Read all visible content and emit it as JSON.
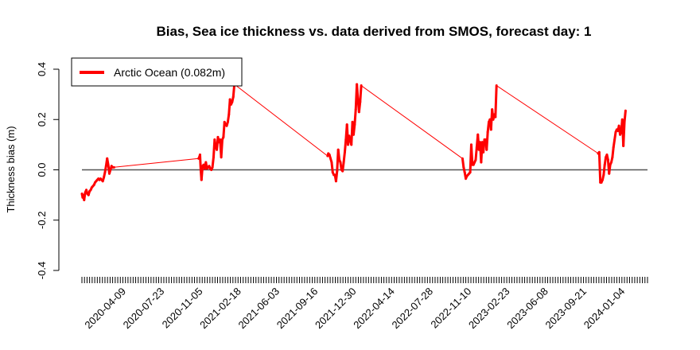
{
  "chart_data": {
    "type": "line",
    "title": "Bias, Sea ice thickness vs. data derived from SMOS, forecast day: 1",
    "xlabel": "",
    "ylabel": "Thickness bias (m)",
    "ylim": [
      -0.4,
      0.4
    ],
    "yticks": [
      -0.4,
      -0.2,
      0.0,
      0.2,
      0.4
    ],
    "ytick_labels": [
      "-0.4",
      "-0.2",
      "0.0",
      "0.2",
      "0.4"
    ],
    "xlim": [
      "2019-12-18",
      "2024-03-13"
    ],
    "xtick_labels": [
      "2020-04-09",
      "2020-07-23",
      "2020-11-05",
      "2021-02-18",
      "2021-06-03",
      "2021-09-16",
      "2021-12-30",
      "2022-04-14",
      "2022-07-28",
      "2022-11-10",
      "2023-02-23",
      "2023-06-08",
      "2023-09-21",
      "2024-01-04"
    ],
    "reference_line": 0.0,
    "grid": false,
    "legend_position": "top-left",
    "series": [
      {
        "name": "Arctic Ocean (0.082m)",
        "color": "#ff0000",
        "points": [
          [
            "2019-12-18",
            -0.095
          ],
          [
            "2019-12-20",
            -0.11
          ],
          [
            "2019-12-22",
            -0.1
          ],
          [
            "2019-12-24",
            -0.12
          ],
          [
            "2019-12-27",
            -0.09
          ],
          [
            "2019-12-30",
            -0.08
          ],
          [
            "2020-01-02",
            -0.095
          ],
          [
            "2020-01-05",
            -0.1
          ],
          [
            "2020-01-08",
            -0.085
          ],
          [
            "2020-01-11",
            -0.08
          ],
          [
            "2020-01-14",
            -0.07
          ],
          [
            "2020-01-17",
            -0.065
          ],
          [
            "2020-01-20",
            -0.06
          ],
          [
            "2020-01-23",
            -0.05
          ],
          [
            "2020-01-26",
            -0.045
          ],
          [
            "2020-01-29",
            -0.04
          ],
          [
            "2020-02-01",
            -0.035
          ],
          [
            "2020-02-04",
            -0.04
          ],
          [
            "2020-02-07",
            -0.035
          ],
          [
            "2020-02-10",
            -0.04
          ],
          [
            "2020-02-13",
            -0.045
          ],
          [
            "2020-02-16",
            -0.03
          ],
          [
            "2020-02-19",
            -0.01
          ],
          [
            "2020-02-22",
            0.015
          ],
          [
            "2020-02-25",
            0.045
          ],
          [
            "2020-02-28",
            0.02
          ],
          [
            "2020-03-02",
            -0.015
          ],
          [
            "2020-03-05",
            0.0
          ],
          [
            "2020-03-08",
            0.015
          ],
          [
            "2020-03-11",
            0.01
          ],
          [
            "2020-03-15",
            0.01
          ],
          [
            "2020-11-01",
            0.045
          ],
          [
            "2020-11-03",
            0.05
          ],
          [
            "2020-11-05",
            0.06
          ],
          [
            "2020-11-07",
            0.0
          ],
          [
            "2020-11-09",
            -0.04
          ],
          [
            "2020-11-12",
            0.015
          ],
          [
            "2020-11-15",
            0.02
          ],
          [
            "2020-11-18",
            0.005
          ],
          [
            "2020-11-21",
            0.03
          ],
          [
            "2020-11-24",
            0.005
          ],
          [
            "2020-11-27",
            0.01
          ],
          [
            "2020-11-30",
            0.015
          ],
          [
            "2020-12-03",
            0.005
          ],
          [
            "2020-12-06",
            0.0
          ],
          [
            "2020-12-09",
            0.01
          ],
          [
            "2020-12-12",
            0.05
          ],
          [
            "2020-12-15",
            0.12
          ],
          [
            "2020-12-18",
            0.09
          ],
          [
            "2020-12-21",
            0.08
          ],
          [
            "2020-12-24",
            0.13
          ],
          [
            "2020-12-27",
            0.11
          ],
          [
            "2020-12-30",
            0.12
          ],
          [
            "2021-01-02",
            0.05
          ],
          [
            "2021-01-05",
            0.12
          ],
          [
            "2021-01-08",
            0.13
          ],
          [
            "2021-01-11",
            0.19
          ],
          [
            "2021-01-14",
            0.18
          ],
          [
            "2021-01-17",
            0.175
          ],
          [
            "2021-01-20",
            0.19
          ],
          [
            "2021-01-23",
            0.22
          ],
          [
            "2021-01-26",
            0.28
          ],
          [
            "2021-01-29",
            0.26
          ],
          [
            "2021-02-01",
            0.27
          ],
          [
            "2021-02-04",
            0.29
          ],
          [
            "2021-02-07",
            0.34
          ],
          [
            "2021-10-20",
            0.055
          ],
          [
            "2021-10-22",
            0.065
          ],
          [
            "2021-10-25",
            0.06
          ],
          [
            "2021-10-28",
            0.045
          ],
          [
            "2021-10-31",
            0.03
          ],
          [
            "2021-11-03",
            -0.01
          ],
          [
            "2021-11-06",
            -0.02
          ],
          [
            "2021-11-09",
            -0.02
          ],
          [
            "2021-11-12",
            -0.045
          ],
          [
            "2021-11-15",
            -0.005
          ],
          [
            "2021-11-18",
            0.08
          ],
          [
            "2021-11-21",
            0.04
          ],
          [
            "2021-11-24",
            0.03
          ],
          [
            "2021-11-27",
            0.0
          ],
          [
            "2021-11-30",
            -0.005
          ],
          [
            "2021-12-03",
            0.03
          ],
          [
            "2021-12-06",
            0.07
          ],
          [
            "2021-12-09",
            0.12
          ],
          [
            "2021-12-12",
            0.18
          ],
          [
            "2021-12-15",
            0.1
          ],
          [
            "2021-12-18",
            0.135
          ],
          [
            "2021-12-21",
            0.12
          ],
          [
            "2021-12-24",
            0.1
          ],
          [
            "2021-12-27",
            0.19
          ],
          [
            "2021-12-30",
            0.14
          ],
          [
            "2022-01-02",
            0.18
          ],
          [
            "2022-01-05",
            0.24
          ],
          [
            "2022-01-08",
            0.34
          ],
          [
            "2022-01-11",
            0.28
          ],
          [
            "2022-01-14",
            0.23
          ],
          [
            "2022-01-17",
            0.27
          ],
          [
            "2022-01-20",
            0.335
          ],
          [
            "2022-10-24",
            0.045
          ],
          [
            "2022-10-27",
            0.01
          ],
          [
            "2022-10-30",
            -0.01
          ],
          [
            "2022-11-02",
            -0.035
          ],
          [
            "2022-11-05",
            -0.025
          ],
          [
            "2022-11-08",
            -0.02
          ],
          [
            "2022-11-11",
            -0.015
          ],
          [
            "2022-11-14",
            -0.01
          ],
          [
            "2022-11-17",
            0.1
          ],
          [
            "2022-11-20",
            0.02
          ],
          [
            "2022-11-23",
            0.02
          ],
          [
            "2022-11-26",
            0.03
          ],
          [
            "2022-11-29",
            0.04
          ],
          [
            "2022-12-02",
            0.09
          ],
          [
            "2022-12-05",
            0.14
          ],
          [
            "2022-12-08",
            0.08
          ],
          [
            "2022-12-11",
            0.11
          ],
          [
            "2022-12-14",
            0.03
          ],
          [
            "2022-12-17",
            0.11
          ],
          [
            "2022-12-20",
            0.07
          ],
          [
            "2022-12-23",
            0.12
          ],
          [
            "2022-12-26",
            0.12
          ],
          [
            "2022-12-29",
            0.08
          ],
          [
            "2023-01-01",
            0.15
          ],
          [
            "2023-01-04",
            0.19
          ],
          [
            "2023-01-07",
            0.2
          ],
          [
            "2023-01-10",
            0.16
          ],
          [
            "2023-01-13",
            0.24
          ],
          [
            "2023-01-16",
            0.2
          ],
          [
            "2023-01-19",
            0.22
          ],
          [
            "2023-01-22",
            0.21
          ],
          [
            "2023-01-25",
            0.335
          ],
          [
            "2023-10-30",
            0.065
          ],
          [
            "2023-11-02",
            0.07
          ],
          [
            "2023-11-05",
            -0.05
          ],
          [
            "2023-11-08",
            -0.05
          ],
          [
            "2023-11-11",
            -0.04
          ],
          [
            "2023-11-14",
            -0.02
          ],
          [
            "2023-11-17",
            0.02
          ],
          [
            "2023-11-20",
            0.05
          ],
          [
            "2023-11-23",
            0.06
          ],
          [
            "2023-11-26",
            0.04
          ],
          [
            "2023-11-29",
            -0.015
          ],
          [
            "2023-12-02",
            0.02
          ],
          [
            "2023-12-05",
            0.03
          ],
          [
            "2023-12-08",
            0.05
          ],
          [
            "2023-12-11",
            0.09
          ],
          [
            "2023-12-14",
            0.12
          ],
          [
            "2023-12-17",
            0.15
          ],
          [
            "2023-12-20",
            0.16
          ],
          [
            "2023-12-23",
            0.155
          ],
          [
            "2023-12-26",
            0.175
          ],
          [
            "2023-12-29",
            0.14
          ],
          [
            "2024-01-01",
            0.15
          ],
          [
            "2024-01-04",
            0.2
          ],
          [
            "2024-01-07",
            0.095
          ],
          [
            "2024-01-10",
            0.19
          ],
          [
            "2024-01-13",
            0.235
          ]
        ]
      }
    ]
  }
}
